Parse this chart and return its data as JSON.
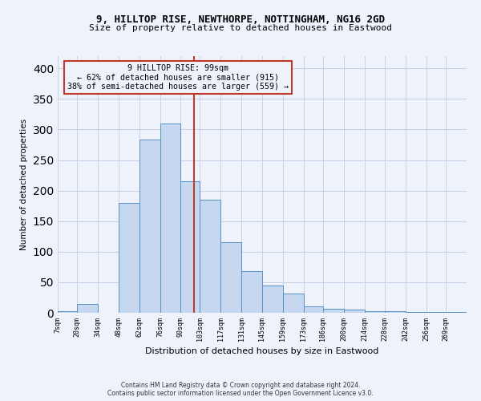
{
  "title1": "9, HILLTOP RISE, NEWTHORPE, NOTTINGHAM, NG16 2GD",
  "title2": "Size of property relative to detached houses in Eastwood",
  "xlabel": "Distribution of detached houses by size in Eastwood",
  "ylabel": "Number of detached properties",
  "footnote1": "Contains HM Land Registry data © Crown copyright and database right 2024.",
  "footnote2": "Contains public sector information licensed under the Open Government Licence v3.0.",
  "annotation_line1": "9 HILLTOP RISE: 99sqm",
  "annotation_line2": "← 62% of detached houses are smaller (915)",
  "annotation_line3": "38% of semi-detached houses are larger (559) →",
  "property_size": 99,
  "bar_edges": [
    7,
    20,
    34,
    48,
    62,
    76,
    90,
    103,
    117,
    131,
    145,
    159,
    173,
    186,
    200,
    214,
    228,
    242,
    256,
    269,
    283
  ],
  "bar_heights": [
    2,
    15,
    0,
    180,
    283,
    310,
    215,
    185,
    116,
    68,
    45,
    31,
    10,
    6,
    5,
    3,
    2,
    1,
    1,
    1
  ],
  "bar_color": "#c5d8f0",
  "bar_edge_color": "#5a8fc3",
  "ref_line_color": "#c0392b",
  "annotation_box_color": "#c0392b",
  "bg_color": "#eef2fb",
  "grid_color": "#c8d0e8",
  "ylim": [
    0,
    420
  ],
  "yticks": [
    0,
    50,
    100,
    150,
    200,
    250,
    300,
    350,
    400
  ]
}
